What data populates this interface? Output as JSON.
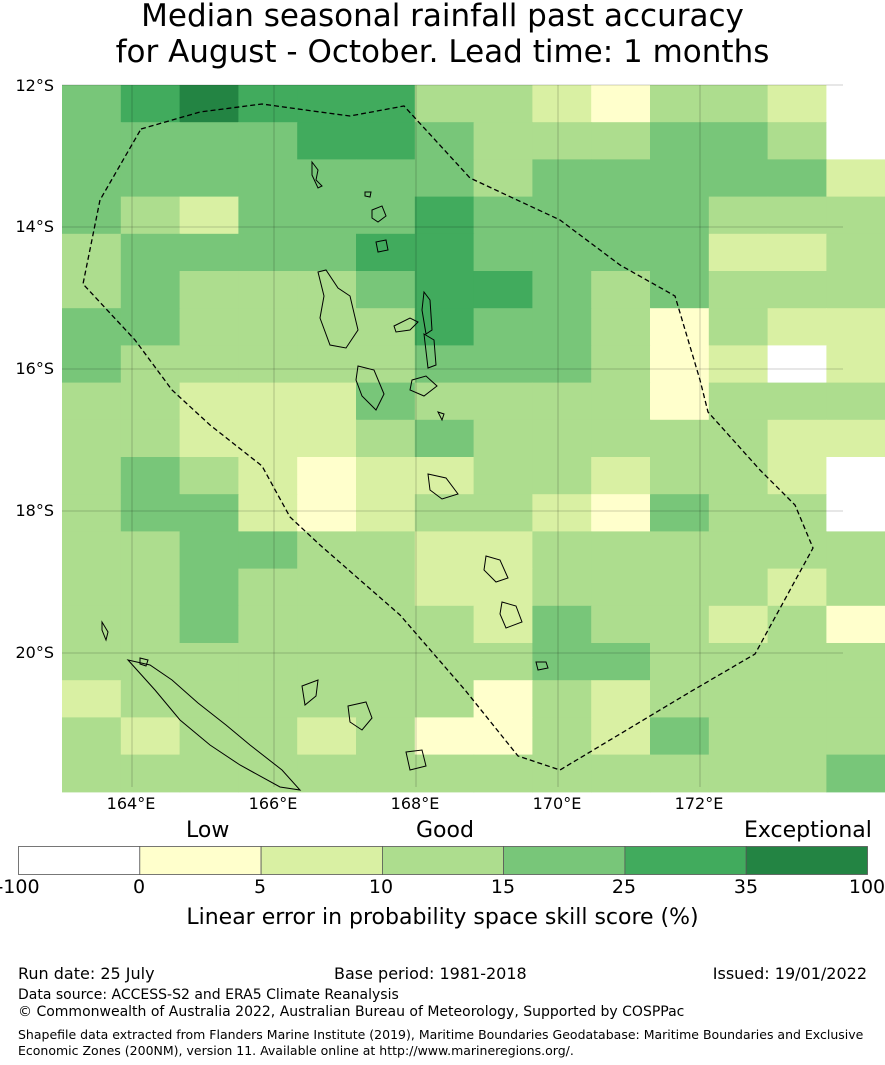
{
  "title_line1": "Median seasonal rainfall past accuracy",
  "title_line2": "for August - October. Lead time: 1 months",
  "lat_labels": [
    "12°S",
    "14°S",
    "16°S",
    "18°S",
    "20°S"
  ],
  "lon_labels": [
    "164°E",
    "166°E",
    "168°E",
    "170°E",
    "172°E"
  ],
  "category_labels": {
    "low": "Low",
    "good": "Good",
    "exceptional": "Exceptional"
  },
  "colorbar": {
    "ticks": [
      "-100",
      "0",
      "5",
      "10",
      "15",
      "25",
      "35",
      "100"
    ],
    "colors": [
      "#ffffff",
      "#ffffcc",
      "#d9f0a3",
      "#addd8e",
      "#78c679",
      "#41ab5d",
      "#238443"
    ],
    "label": "Linear error in probability space skill score (%)"
  },
  "palette": {
    "W": "#ffffff",
    "Y": "#ffffcc",
    "L": "#d9f0a3",
    "M": "#addd8e",
    "G": "#78c679",
    "D": "#41ab5d",
    "X": "#238443"
  },
  "grid_rows": [
    "GDXDDDMMLYMMLW",
    "GGGGDDGMMMGGMW",
    "GGGGGGGMGGGGGL",
    "GMLGGGDGGGGMMM",
    "MGGGGDDGGGGLLM",
    "MGMMMGDDGMGMMM",
    "GGMMMMDGGMYMLL",
    "GMMMMMGGGMYLWL",
    "MMLLLGMMMMYMMM",
    "MMLLLMGMMMMMLL",
    "MGMLYLLMMLMMLW",
    "MGGLYLMMLYGMMW",
    "MMGGMMLLMMMMMM",
    "MMGMMMLLMMMMLM",
    "MMGMMMMLGMMLMY",
    "MMMMMMMMGGMMMM",
    "LMMMMMMYMLMMMM",
    "MLMMLMYYMLGMMM",
    "MMMMMMMMMMMMMG"
  ],
  "footer": {
    "run_date": "Run date: 25 July",
    "base_period": "Base period: 1981-2018",
    "issued": "Issued: 19/01/2022",
    "data_source": "Data source: ACCESS-S2 and ERA5 Climate Reanalysis",
    "copyright": "© Commonwealth of Australia 2022, Australian Bureau of Meteorology, Supported by COSPPac",
    "shapefile_line1": "Shapefile data extracted from Flanders Marine Institute (2019), Maritime Boundaries Geodatabase: Maritime Boundaries and Exclusive",
    "shapefile_line2": "Economic Zones (200NM), version 11. Available online at http://www.marineregions.org/."
  }
}
